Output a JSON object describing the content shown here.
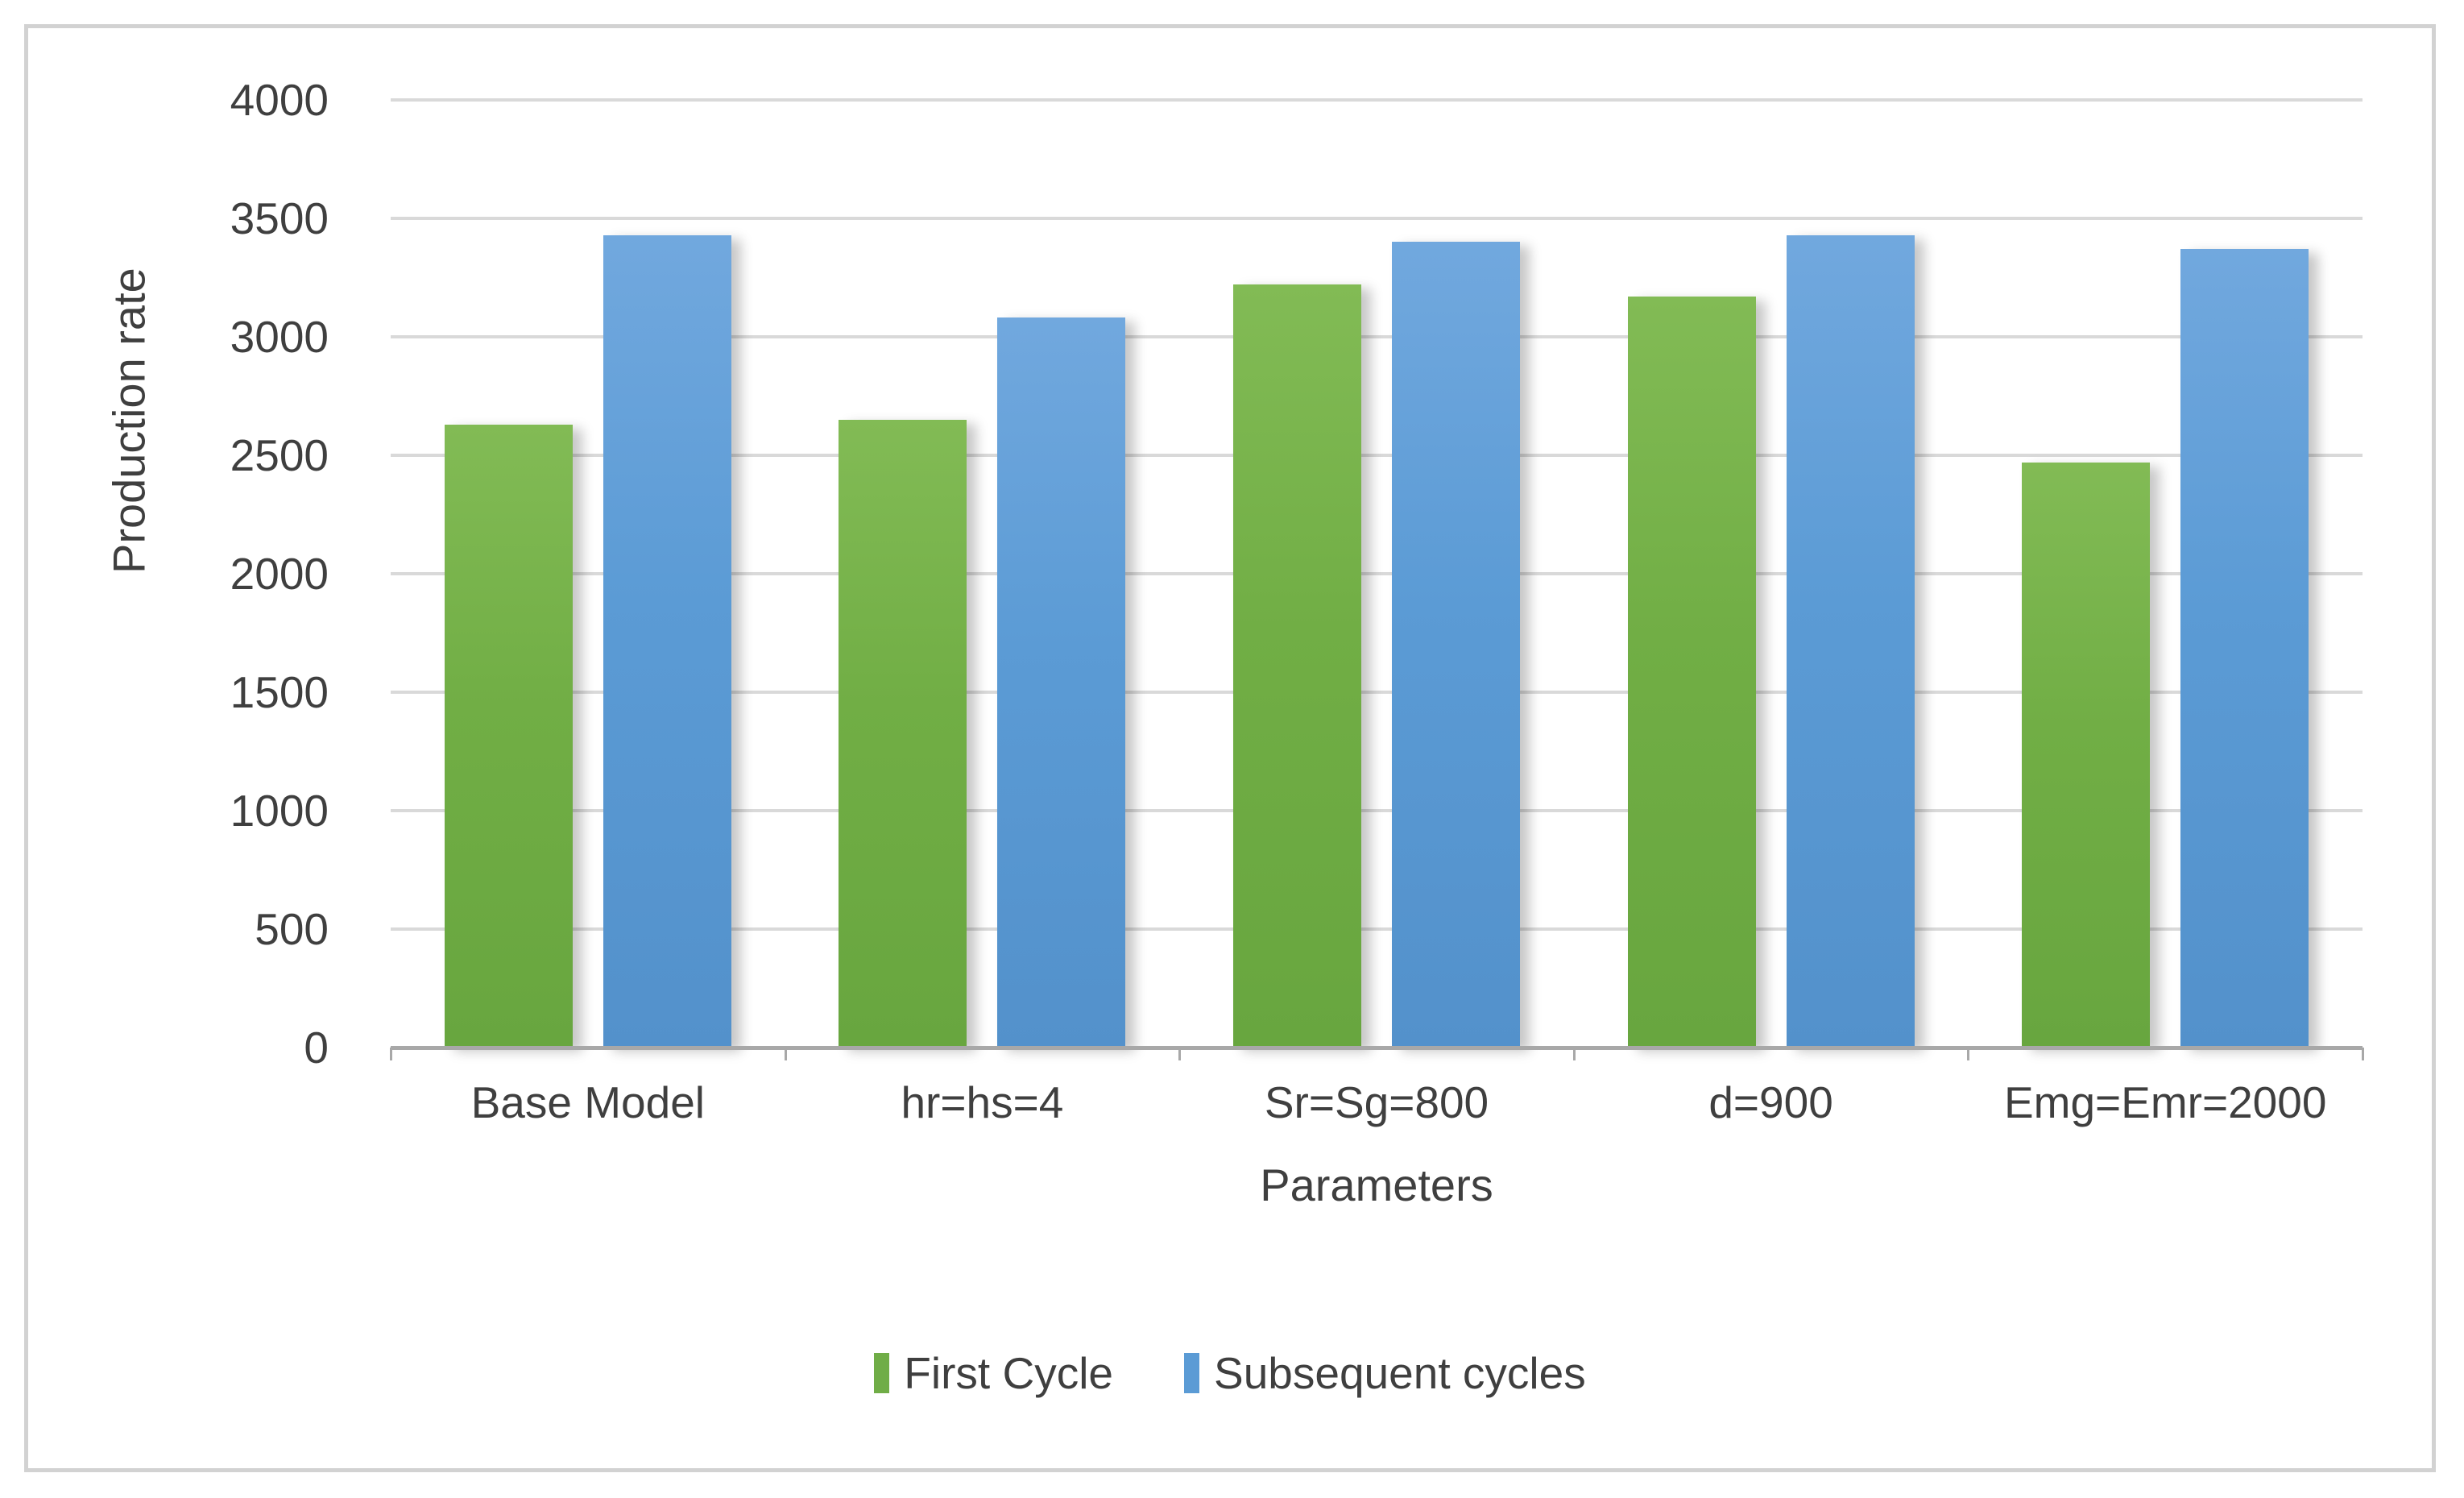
{
  "chart_data": {
    "type": "bar",
    "title": "",
    "xlabel": "Parameters",
    "ylabel": "Production rate",
    "categories": [
      "Base Model",
      "hr=hs=4",
      "Sr=Sg=800",
      "d=900",
      "Emg=Emr=2000"
    ],
    "series": [
      {
        "name": "First Cycle",
        "color": "#70ad47",
        "values": [
          2630,
          2650,
          3220,
          3170,
          2470
        ]
      },
      {
        "name": "Subsequent cycles",
        "color": "#5b9bd5",
        "values": [
          3430,
          3080,
          3400,
          3430,
          3370
        ]
      }
    ],
    "ylim": [
      0,
      4000
    ],
    "ytick_step": 500,
    "yticks": [
      0,
      500,
      1000,
      1500,
      2000,
      2500,
      3000,
      3500,
      4000
    ],
    "grid": true,
    "legend_position": "bottom",
    "colors": {
      "gridline": "#d9d9d9",
      "axis_line": "#a8a8a8",
      "text": "#3f3f3f",
      "frame_border": "#d2d2d2",
      "background": "#ffffff"
    }
  }
}
